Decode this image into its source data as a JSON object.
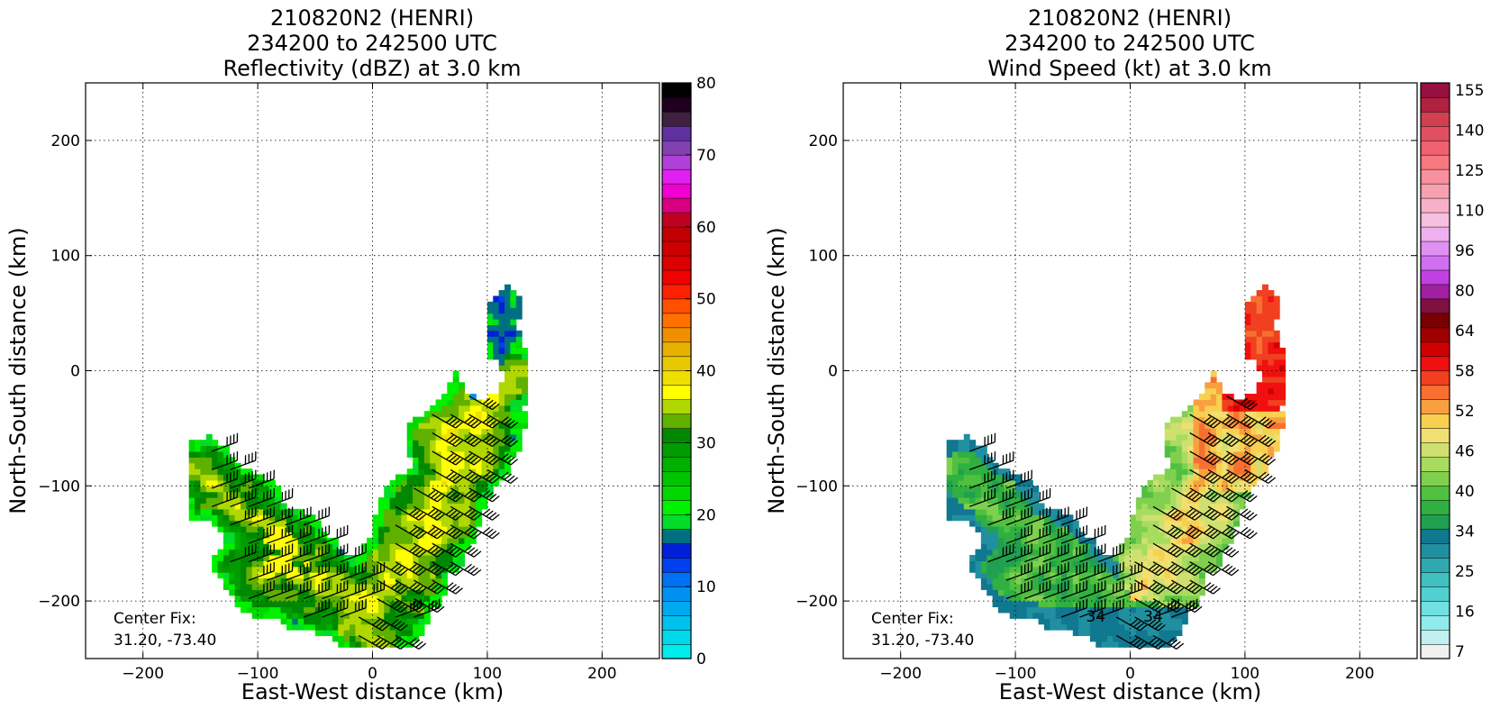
{
  "chart_data": [
    {
      "type": "heatmap",
      "title_lines": [
        "210820N2 (HENRI)",
        "234200 to 242500 UTC",
        "Reflectivity (dBZ) at 3.0 km"
      ],
      "xlabel": "East-West distance (km)",
      "ylabel": "North-South distance (km)",
      "xlim": [
        -250,
        250
      ],
      "ylim": [
        -250,
        250
      ],
      "xticks": [
        -200,
        -100,
        0,
        100,
        200
      ],
      "yticks": [
        -200,
        -100,
        0,
        100,
        200
      ],
      "grid": true,
      "center_fix_label": "Center Fix:",
      "center_fix_value": "31.20, -73.40",
      "colorbar": {
        "min": 0,
        "max": 80,
        "step": 2.5,
        "ticks": [
          0,
          10,
          20,
          30,
          40,
          50,
          60,
          70,
          80
        ],
        "colors": [
          "#00ecec",
          "#00d8ec",
          "#00c0ee",
          "#00a8f0",
          "#0090f2",
          "#0070f4",
          "#0040ee",
          "#0020d8",
          "#007080",
          "#00dc28",
          "#00f000",
          "#00d800",
          "#00c400",
          "#00b000",
          "#009c00",
          "#008800",
          "#60b000",
          "#b0d800",
          "#ffff00",
          "#f0e000",
          "#e8c800",
          "#e8b000",
          "#f09000",
          "#ff7000",
          "#ff5000",
          "#ff2000",
          "#f00000",
          "#dc0000",
          "#cc0000",
          "#c00000",
          "#c00020",
          "#d80080",
          "#f000d0",
          "#e020f0",
          "#b040d8",
          "#8040b0",
          "#6030a0",
          "#402040",
          "#200020",
          "#000000"
        ]
      },
      "data_extent": "swath from about (-155,-75) southeast to (0,-235) then northeast to (125,70) km"
    },
    {
      "type": "heatmap",
      "title_lines": [
        "210820N2 (HENRI)",
        "234200 to 242500 UTC",
        "Wind Speed (kt) at 3.0 km"
      ],
      "xlabel": "East-West distance (km)",
      "ylabel": "North-South distance (km)",
      "xlim": [
        -250,
        250
      ],
      "ylim": [
        -250,
        250
      ],
      "xticks": [
        -200,
        -100,
        0,
        100,
        200
      ],
      "yticks": [
        -200,
        -100,
        0,
        100,
        200
      ],
      "grid": true,
      "center_fix_label": "Center Fix:",
      "center_fix_value": "31.20, -73.40",
      "colorbar": {
        "tick_labels": [
          "7",
          "16",
          "25",
          "34",
          "40",
          "46",
          "52",
          "58",
          "64",
          "80",
          "96",
          "110",
          "125",
          "140",
          "155"
        ],
        "colors": [
          "#f0f0f0",
          "#c0f0f0",
          "#90ecec",
          "#70e0e0",
          "#50d0d0",
          "#40c0c0",
          "#30a8b0",
          "#2090a0",
          "#107890",
          "#20a050",
          "#30b040",
          "#50c040",
          "#80d050",
          "#a8dc60",
          "#d0e070",
          "#f0e070",
          "#f8d050",
          "#f8a040",
          "#f87030",
          "#f04020",
          "#f01010",
          "#d00000",
          "#a00000",
          "#780000",
          "#801040",
          "#a020a0",
          "#c040e0",
          "#d070f0",
          "#e090f0",
          "#f0b0f0",
          "#f8c0e0",
          "#f8b0c8",
          "#f8a0b0",
          "#f890a0",
          "#f87880",
          "#f06070",
          "#e05060",
          "#d04050",
          "#b02040",
          "#981040"
        ]
      },
      "contour_labels": [
        "34",
        "34"
      ],
      "data_extent": "swath from about (-150,-90) southeast to (0,-230) then northeast to (125,70) km"
    }
  ]
}
